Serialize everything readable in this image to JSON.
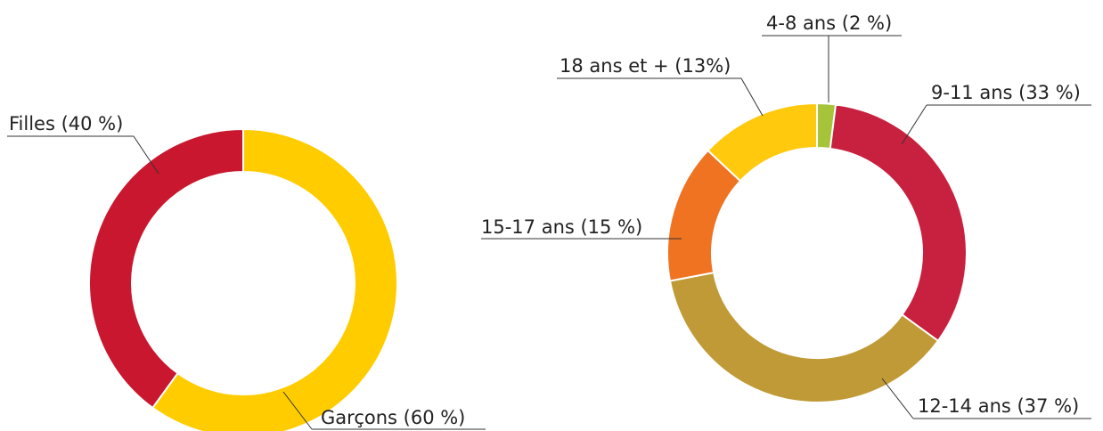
{
  "chart_data": [
    {
      "type": "donut",
      "values": [
        60,
        40
      ],
      "value_labels": [
        "Garçons (60 %)",
        "Filles (40 %)"
      ],
      "colors": [
        "#ffcc00",
        "#c8172e"
      ]
    },
    {
      "type": "donut",
      "values": [
        2,
        33,
        37,
        15,
        13
      ],
      "value_labels": [
        "4-8 ans (2 %)",
        "9-11 ans (33 %)",
        "12-14 ans (37 %)",
        "15-17 ans (15 %)",
        "18 ans et + (13%)"
      ],
      "colors": [
        "#a6c43a",
        "#c8203f",
        "#bf9a36",
        "#f07322",
        "#ffc90e"
      ]
    }
  ]
}
